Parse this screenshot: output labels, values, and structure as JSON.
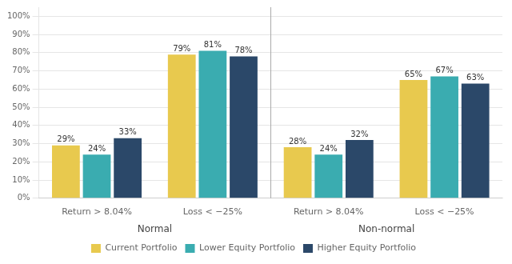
{
  "chart_data": {
    "type": "bar",
    "categories": [
      "Return > 8.04%",
      "Loss < −25%",
      "Return > 8.04%",
      "Loss < −25%"
    ],
    "sections": [
      "Normal",
      "Normal",
      "Non-normal",
      "Non-normal"
    ],
    "series": [
      {
        "name": "Current Portfolio",
        "color": "#E8C94E",
        "values": [
          29,
          79,
          28,
          65
        ],
        "value_labels": [
          "29%",
          "79%",
          "28%",
          "65%"
        ]
      },
      {
        "name": "Lower Equity Portfolio",
        "color": "#3AACB0",
        "values": [
          24,
          81,
          24,
          67
        ],
        "value_labels": [
          "24%",
          "81%",
          "24%",
          "67%"
        ]
      },
      {
        "name": "Higher Equity Portfolio",
        "color": "#2B4869",
        "values": [
          33,
          78,
          32,
          63
        ],
        "value_labels": [
          "33%",
          "78%",
          "32%",
          "63%"
        ]
      }
    ],
    "ylim": [
      0,
      105
    ],
    "yticks": [
      {
        "value": 0,
        "label": "0%"
      },
      {
        "value": 10,
        "label": "10%"
      },
      {
        "value": 20,
        "label": "20%"
      },
      {
        "value": 30,
        "label": "30%"
      },
      {
        "value": 40,
        "label": "40%"
      },
      {
        "value": 50,
        "label": "50%"
      },
      {
        "value": 60,
        "label": "60%"
      },
      {
        "value": 70,
        "label": "70%"
      },
      {
        "value": 80,
        "label": "80%"
      },
      {
        "value": 90,
        "label": "90%"
      },
      {
        "value": 100,
        "label": "100%"
      }
    ],
    "grid": true,
    "legend": "bottom",
    "data_labels": true
  }
}
